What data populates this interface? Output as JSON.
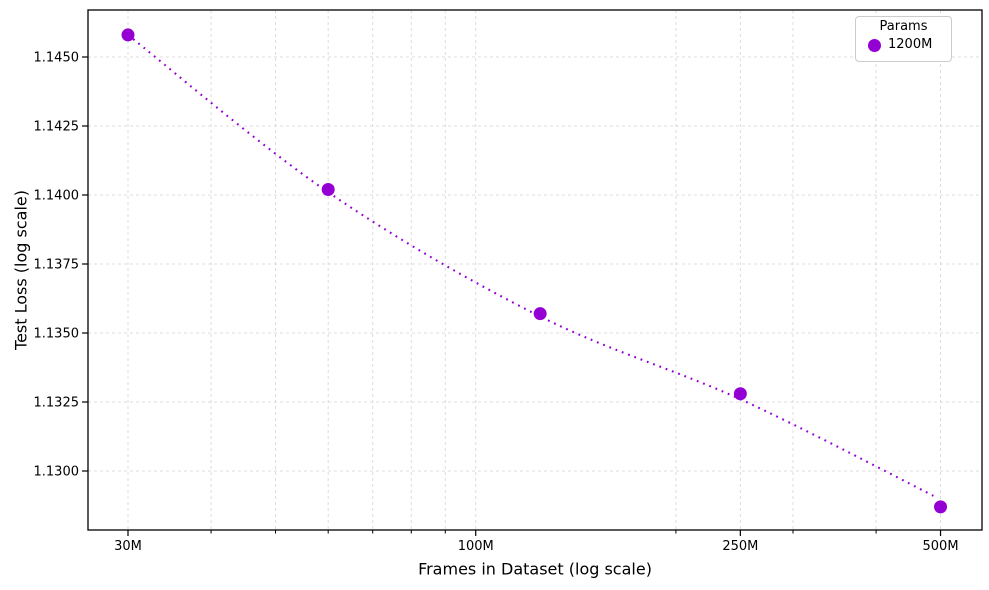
{
  "chart_data": {
    "type": "scatter",
    "title": "",
    "xlabel": "Frames in Dataset (log scale)",
    "ylabel": "Test Loss (log scale)",
    "x_scale": "log",
    "y_scale": "log",
    "xlim_millions": [
      26.1,
      577
    ],
    "ylim": [
      1.1279,
      1.1467
    ],
    "grid": {
      "visible": true,
      "style": "dashed",
      "color": "#dcdcdc"
    },
    "x_ticks": [
      {
        "value_millions": 30,
        "label": "30M"
      },
      {
        "value_millions": 100,
        "label": "100M"
      },
      {
        "value_millions": 250,
        "label": "250M"
      },
      {
        "value_millions": 500,
        "label": "500M"
      }
    ],
    "x_minor_ticks_millions": [
      40,
      50,
      60,
      70,
      80,
      90,
      200,
      300,
      400
    ],
    "y_ticks": [
      {
        "value": 1.145,
        "label": "1.1450"
      },
      {
        "value": 1.1425,
        "label": "1.1425"
      },
      {
        "value": 1.14,
        "label": "1.1400"
      },
      {
        "value": 1.1375,
        "label": "1.1375"
      },
      {
        "value": 1.135,
        "label": "1.1350"
      },
      {
        "value": 1.1325,
        "label": "1.1325"
      },
      {
        "value": 1.13,
        "label": "1.1300"
      }
    ],
    "legend": {
      "title": "Params",
      "position": "upper right",
      "entries": [
        {
          "label": "1200M",
          "color": "#9400D3",
          "marker": "circle"
        }
      ]
    },
    "series": [
      {
        "name": "1200M",
        "color": "#9400D3",
        "marker": "circle",
        "points": [
          {
            "frames_millions": 30,
            "test_loss": 1.1458
          },
          {
            "frames_millions": 60,
            "test_loss": 1.1402
          },
          {
            "frames_millions": 125,
            "test_loss": 1.1357
          },
          {
            "frames_millions": 250,
            "test_loss": 1.1328
          },
          {
            "frames_millions": 500,
            "test_loss": 1.1287
          }
        ]
      }
    ],
    "trend_line": {
      "description": "dotted power-law fit",
      "style": "dotted",
      "color": "#9400D3",
      "points": [
        {
          "frames_millions": 30,
          "test_loss": 1.1458
        },
        {
          "frames_millions": 60,
          "test_loss": 1.1401
        },
        {
          "frames_millions": 125,
          "test_loss": 1.1356
        },
        {
          "frames_millions": 250,
          "test_loss": 1.1326
        },
        {
          "frames_millions": 488,
          "test_loss": 1.1291
        }
      ]
    },
    "colors": {
      "accent": "#9400D3",
      "spine": "#000000",
      "grid": "#dcdcdc"
    }
  }
}
